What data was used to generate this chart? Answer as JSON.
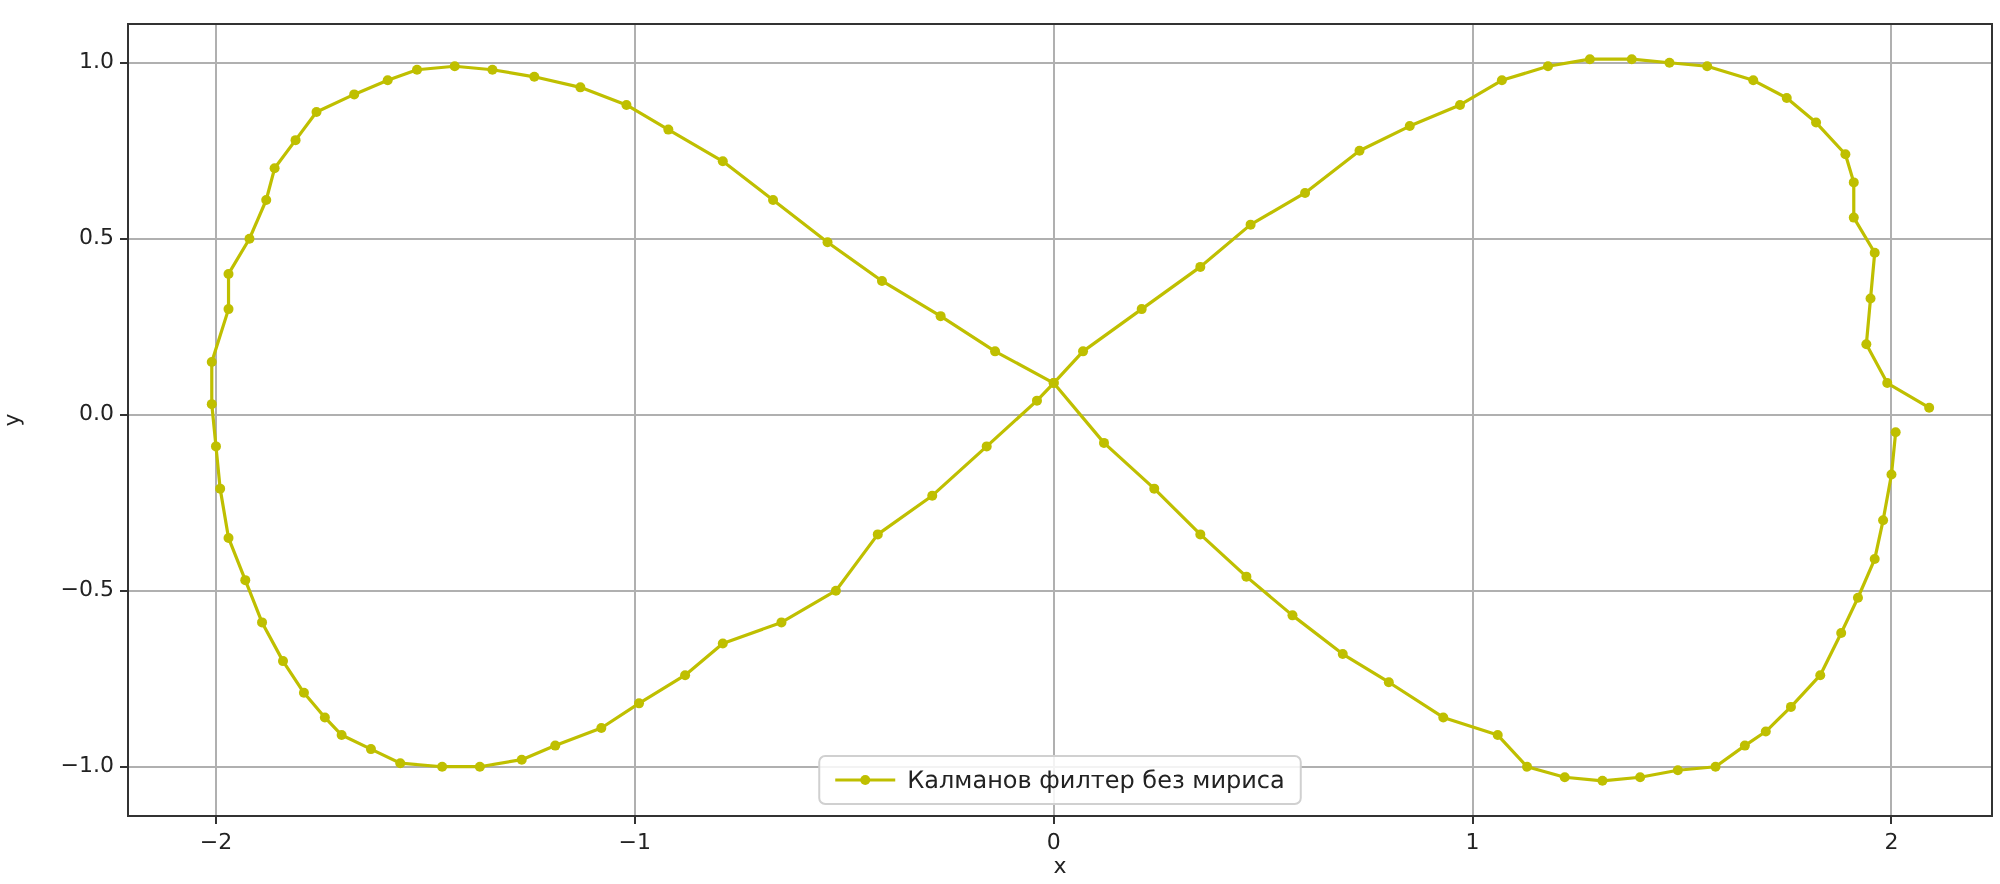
{
  "chart_data": {
    "type": "line",
    "xlabel": "x",
    "ylabel": "y",
    "xlim": [
      -2.21,
      2.24
    ],
    "ylim": [
      -1.14,
      1.11
    ],
    "xticks": [
      {
        "value": -2,
        "label": "−2"
      },
      {
        "value": -1,
        "label": "−1"
      },
      0,
      1,
      2
    ],
    "yticks": [
      {
        "value": -1,
        "label": "−1.0"
      },
      {
        "value": -0.5,
        "label": "−0.5"
      },
      {
        "value": 0,
        "label": "0.0"
      },
      0.5,
      {
        "value": 1,
        "label": "1.0"
      }
    ],
    "grid": true,
    "legend": "bottom",
    "marker": "circle",
    "line_style": "solid",
    "series": [
      {
        "name": "Калманов филтер без мириса",
        "color": "#bfbf00",
        "x": [
          2.09,
          1.99,
          1.94,
          1.95,
          1.96,
          1.91,
          1.91,
          1.89,
          1.82,
          1.75,
          1.67,
          1.56,
          1.47,
          1.38,
          1.28,
          1.18,
          1.07,
          0.97,
          0.85,
          0.73,
          0.6,
          0.47,
          0.35,
          0.21,
          0.07,
          0.0,
          -0.04,
          -0.16,
          -0.29,
          -0.42,
          -0.52,
          -0.65,
          -0.79,
          -0.88,
          -0.99,
          -1.08,
          -1.19,
          -1.27,
          -1.37,
          -1.46,
          -1.56,
          -1.63,
          -1.7,
          -1.74,
          -1.79,
          -1.84,
          -1.89,
          -1.93,
          -1.97,
          -1.99,
          -2.0,
          -2.01,
          -2.01,
          -1.97,
          -1.97,
          -1.92,
          -1.88,
          -1.86,
          -1.81,
          -1.76,
          -1.67,
          -1.59,
          -1.52,
          -1.43,
          -1.34,
          -1.24,
          -1.13,
          -1.02,
          -0.92,
          -0.79,
          -0.67,
          -0.54,
          -0.41,
          -0.27,
          -0.14,
          0.0,
          0.12,
          0.24,
          0.35,
          0.46,
          0.57,
          0.69,
          0.8,
          0.93,
          1.06,
          1.13,
          1.22,
          1.31,
          1.4,
          1.49,
          1.58,
          1.65,
          1.7,
          1.76,
          1.83,
          1.88,
          1.92,
          1.96,
          1.98,
          2.0,
          2.01
        ],
        "values": [
          0.02,
          0.09,
          0.2,
          0.33,
          0.46,
          0.56,
          0.66,
          0.74,
          0.83,
          0.9,
          0.95,
          0.99,
          1.0,
          1.01,
          1.01,
          0.99,
          0.95,
          0.88,
          0.82,
          0.75,
          0.63,
          0.54,
          0.42,
          0.3,
          0.18,
          0.09,
          0.04,
          -0.09,
          -0.23,
          -0.34,
          -0.5,
          -0.59,
          -0.65,
          -0.74,
          -0.82,
          -0.89,
          -0.94,
          -0.98,
          -1.0,
          -1.0,
          -0.99,
          -0.95,
          -0.91,
          -0.86,
          -0.79,
          -0.7,
          -0.59,
          -0.47,
          -0.35,
          -0.21,
          -0.09,
          0.03,
          0.15,
          0.3,
          0.4,
          0.5,
          0.61,
          0.7,
          0.78,
          0.86,
          0.91,
          0.95,
          0.98,
          0.99,
          0.98,
          0.96,
          0.93,
          0.88,
          0.81,
          0.72,
          0.61,
          0.49,
          0.38,
          0.28,
          0.18,
          0.09,
          -0.08,
          -0.21,
          -0.34,
          -0.46,
          -0.57,
          -0.68,
          -0.76,
          -0.86,
          -0.91,
          -1.0,
          -1.03,
          -1.04,
          -1.03,
          -1.01,
          -1.0,
          -0.94,
          -0.9,
          -0.83,
          -0.74,
          -0.62,
          -0.52,
          -0.41,
          -0.3,
          -0.17,
          -0.05
        ]
      }
    ]
  }
}
